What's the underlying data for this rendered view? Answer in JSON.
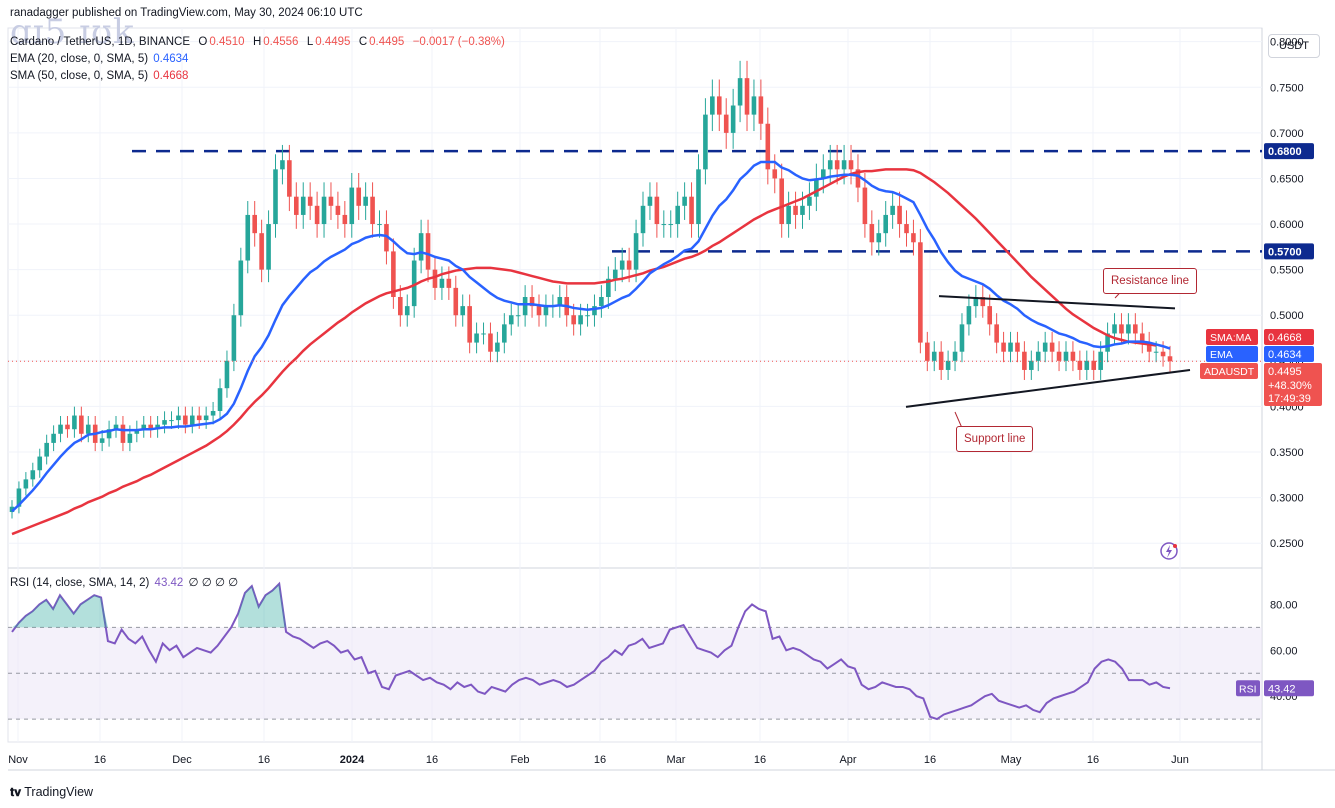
{
  "header": {
    "published": "ranadagger published on TradingView.com, May 30, 2024 06:10 UTC",
    "symbol": "Cardano / TetherUS, 1D, BINANCE",
    "o_label": "O",
    "o_value": "0.4510",
    "h_label": "H",
    "h_value": "0.4556",
    "l_label": "L",
    "l_value": "0.4495",
    "c_label": "C",
    "c_value": "0.4495",
    "change": "−0.0017 (−0.38%)",
    "ema_label": "EMA (20, close, 0, SMA, 5)",
    "ema_value": "0.4634",
    "sma_label": "SMA (50, close, 0, SMA, 5)",
    "sma_value": "0.4668",
    "rsi_label": "RSI (14, close, SMA, 14, 2)",
    "rsi_value": "43.42",
    "rsi_extra": "∅ ∅ ∅ ∅"
  },
  "watermark": "ɑɪ5 ɪʊk",
  "currency_button": "USDT",
  "footer_logo": "TradingView",
  "colors": {
    "up": "#26a69a",
    "down": "#ef5350",
    "ema": "#2962ff",
    "sma": "#e8343f",
    "rsi": "#7e57c2",
    "rsi_band": "#ede7f6",
    "line": "#131722"
  },
  "annotations": {
    "resistance": "Resistance line",
    "support": "Support line"
  },
  "badges": {
    "sma": {
      "label": "SMA:MA",
      "value": "0.4668"
    },
    "ema": {
      "label": "EMA",
      "value": "0.4634"
    },
    "price": {
      "label": "ADAUSDT",
      "value": "0.4495",
      "change": "+48.30%",
      "countdown": "17:49:39"
    },
    "rsi": {
      "label": "RSI",
      "value": "43.42"
    },
    "level_680": "0.6800",
    "level_570": "0.5700"
  },
  "chart_data": {
    "type": "candlestick",
    "price_ticks": [
      "0.8000",
      "0.7500",
      "0.7000",
      "0.6800",
      "0.6500",
      "0.6000",
      "0.5700",
      "0.5500",
      "0.5000",
      "0.4500",
      "0.4000",
      "0.3500",
      "0.3000",
      "0.2500"
    ],
    "rsi_ticks": [
      "80.00",
      "60.00",
      "40.00"
    ],
    "x_ticks": [
      "Nov",
      "16",
      "Dec",
      "16",
      "2024",
      "16",
      "Feb",
      "16",
      "Mar",
      "16",
      "Apr",
      "16",
      "May",
      "16",
      "Jun"
    ],
    "ylim": [
      0.225,
      0.815
    ],
    "horizontal_levels": [
      0.68,
      0.57
    ],
    "close": [
      0.29,
      0.31,
      0.32,
      0.33,
      0.345,
      0.36,
      0.37,
      0.38,
      0.375,
      0.39,
      0.37,
      0.38,
      0.36,
      0.365,
      0.375,
      0.38,
      0.36,
      0.37,
      0.375,
      0.38,
      0.375,
      0.38,
      0.385,
      0.385,
      0.39,
      0.38,
      0.39,
      0.385,
      0.39,
      0.395,
      0.42,
      0.45,
      0.5,
      0.56,
      0.61,
      0.59,
      0.55,
      0.6,
      0.66,
      0.67,
      0.63,
      0.61,
      0.63,
      0.62,
      0.6,
      0.63,
      0.62,
      0.61,
      0.6,
      0.64,
      0.62,
      0.63,
      0.6,
      0.6,
      0.57,
      0.52,
      0.5,
      0.51,
      0.56,
      0.59,
      0.55,
      0.53,
      0.54,
      0.53,
      0.5,
      0.51,
      0.47,
      0.48,
      0.48,
      0.46,
      0.47,
      0.49,
      0.5,
      0.5,
      0.52,
      0.51,
      0.5,
      0.51,
      0.51,
      0.52,
      0.5,
      0.49,
      0.5,
      0.5,
      0.51,
      0.52,
      0.54,
      0.55,
      0.56,
      0.55,
      0.59,
      0.62,
      0.63,
      0.6,
      0.6,
      0.6,
      0.62,
      0.63,
      0.6,
      0.66,
      0.72,
      0.74,
      0.72,
      0.7,
      0.73,
      0.76,
      0.72,
      0.74,
      0.71,
      0.66,
      0.65,
      0.6,
      0.62,
      0.61,
      0.62,
      0.63,
      0.65,
      0.66,
      0.67,
      0.66,
      0.67,
      0.66,
      0.64,
      0.6,
      0.58,
      0.59,
      0.61,
      0.62,
      0.6,
      0.59,
      0.58,
      0.47,
      0.45,
      0.46,
      0.44,
      0.45,
      0.46,
      0.49,
      0.51,
      0.52,
      0.51,
      0.49,
      0.47,
      0.46,
      0.47,
      0.46,
      0.44,
      0.45,
      0.46,
      0.47,
      0.46,
      0.45,
      0.46,
      0.45,
      0.44,
      0.45,
      0.44,
      0.46,
      0.48,
      0.49,
      0.48,
      0.49,
      0.48,
      0.47,
      0.46,
      0.46,
      0.455,
      0.4495
    ],
    "ema20": [
      0.285,
      0.292,
      0.3,
      0.308,
      0.317,
      0.327,
      0.336,
      0.345,
      0.353,
      0.36,
      0.364,
      0.369,
      0.37,
      0.372,
      0.373,
      0.375,
      0.374,
      0.374,
      0.374,
      0.375,
      0.375,
      0.376,
      0.377,
      0.377,
      0.378,
      0.378,
      0.379,
      0.38,
      0.381,
      0.382,
      0.386,
      0.392,
      0.403,
      0.42,
      0.439,
      0.455,
      0.465,
      0.478,
      0.495,
      0.511,
      0.521,
      0.53,
      0.539,
      0.547,
      0.552,
      0.559,
      0.564,
      0.568,
      0.572,
      0.578,
      0.581,
      0.585,
      0.587,
      0.588,
      0.587,
      0.581,
      0.574,
      0.568,
      0.567,
      0.569,
      0.567,
      0.564,
      0.562,
      0.56,
      0.554,
      0.55,
      0.542,
      0.536,
      0.53,
      0.524,
      0.519,
      0.516,
      0.514,
      0.512,
      0.512,
      0.512,
      0.511,
      0.51,
      0.51,
      0.511,
      0.51,
      0.508,
      0.507,
      0.506,
      0.507,
      0.508,
      0.511,
      0.515,
      0.519,
      0.522,
      0.529,
      0.537,
      0.546,
      0.551,
      0.556,
      0.56,
      0.565,
      0.571,
      0.573,
      0.581,
      0.595,
      0.609,
      0.62,
      0.627,
      0.637,
      0.649,
      0.656,
      0.664,
      0.668,
      0.668,
      0.668,
      0.662,
      0.659,
      0.654,
      0.65,
      0.648,
      0.649,
      0.65,
      0.652,
      0.653,
      0.654,
      0.654,
      0.653,
      0.648,
      0.642,
      0.638,
      0.636,
      0.635,
      0.632,
      0.628,
      0.624,
      0.61,
      0.595,
      0.583,
      0.569,
      0.558,
      0.549,
      0.543,
      0.54,
      0.537,
      0.534,
      0.529,
      0.522,
      0.516,
      0.512,
      0.507,
      0.5,
      0.495,
      0.491,
      0.488,
      0.484,
      0.48,
      0.478,
      0.475,
      0.471,
      0.469,
      0.466,
      0.465,
      0.466,
      0.468,
      0.469,
      0.471,
      0.471,
      0.471,
      0.47,
      0.468,
      0.466,
      0.4634
    ],
    "sma50": [
      0.26,
      0.263,
      0.266,
      0.269,
      0.272,
      0.275,
      0.278,
      0.281,
      0.284,
      0.288,
      0.291,
      0.295,
      0.298,
      0.301,
      0.305,
      0.308,
      0.312,
      0.315,
      0.318,
      0.322,
      0.325,
      0.329,
      0.333,
      0.337,
      0.341,
      0.345,
      0.349,
      0.353,
      0.357,
      0.362,
      0.367,
      0.373,
      0.38,
      0.388,
      0.397,
      0.405,
      0.412,
      0.42,
      0.429,
      0.438,
      0.446,
      0.453,
      0.461,
      0.468,
      0.474,
      0.48,
      0.486,
      0.492,
      0.497,
      0.503,
      0.508,
      0.513,
      0.517,
      0.521,
      0.524,
      0.526,
      0.528,
      0.53,
      0.533,
      0.537,
      0.54,
      0.542,
      0.545,
      0.547,
      0.549,
      0.55,
      0.551,
      0.552,
      0.552,
      0.552,
      0.551,
      0.55,
      0.549,
      0.547,
      0.545,
      0.543,
      0.541,
      0.539,
      0.537,
      0.536,
      0.535,
      0.535,
      0.535,
      0.535,
      0.535,
      0.536,
      0.537,
      0.539,
      0.54,
      0.542,
      0.544,
      0.546,
      0.549,
      0.551,
      0.553,
      0.556,
      0.559,
      0.562,
      0.564,
      0.567,
      0.571,
      0.576,
      0.58,
      0.585,
      0.59,
      0.595,
      0.6,
      0.605,
      0.609,
      0.613,
      0.616,
      0.619,
      0.622,
      0.625,
      0.628,
      0.632,
      0.636,
      0.64,
      0.644,
      0.648,
      0.652,
      0.655,
      0.657,
      0.658,
      0.658,
      0.659,
      0.66,
      0.66,
      0.66,
      0.66,
      0.659,
      0.656,
      0.651,
      0.646,
      0.64,
      0.634,
      0.627,
      0.62,
      0.613,
      0.606,
      0.598,
      0.59,
      0.582,
      0.574,
      0.566,
      0.558,
      0.55,
      0.542,
      0.535,
      0.528,
      0.521,
      0.514,
      0.507,
      0.501,
      0.496,
      0.491,
      0.486,
      0.482,
      0.478,
      0.475,
      0.473,
      0.471,
      0.47,
      0.469,
      0.468,
      0.4668
    ],
    "rsi": [
      68,
      72,
      75,
      77,
      80,
      82,
      78,
      84,
      80,
      76,
      80,
      82,
      84,
      83,
      64,
      63,
      69,
      65,
      63,
      66,
      60,
      55,
      63,
      60,
      62,
      57,
      59,
      61,
      60,
      59,
      62,
      66,
      70,
      76,
      85,
      88,
      79,
      84,
      86,
      89,
      68,
      66,
      65,
      63,
      61,
      63,
      64,
      62,
      59,
      60,
      56,
      57,
      50,
      51,
      44,
      43,
      49,
      50,
      51,
      49,
      47,
      48,
      46,
      45,
      43,
      46,
      44,
      45,
      42,
      41,
      44,
      43,
      42,
      45,
      47,
      48,
      47,
      45,
      46,
      47,
      46,
      44,
      45,
      47,
      49,
      51,
      55,
      57,
      60,
      58,
      62,
      63,
      65,
      61,
      62,
      63,
      69,
      70,
      71,
      66,
      61,
      60,
      59,
      57,
      60,
      62,
      70,
      77,
      80,
      78,
      77,
      65,
      66,
      60,
      61,
      60,
      58,
      56,
      55,
      52,
      54,
      56,
      53,
      52,
      45,
      43,
      44,
      46,
      45,
      44,
      44,
      43,
      40,
      39,
      31,
      30,
      32,
      33,
      34,
      35,
      36,
      38,
      40,
      41,
      38,
      37,
      36,
      35,
      36,
      34,
      33,
      37,
      39,
      40,
      41,
      42,
      44,
      46,
      52,
      55,
      56,
      55,
      52,
      47,
      47,
      47,
      45,
      46,
      44,
      43.42
    ]
  }
}
